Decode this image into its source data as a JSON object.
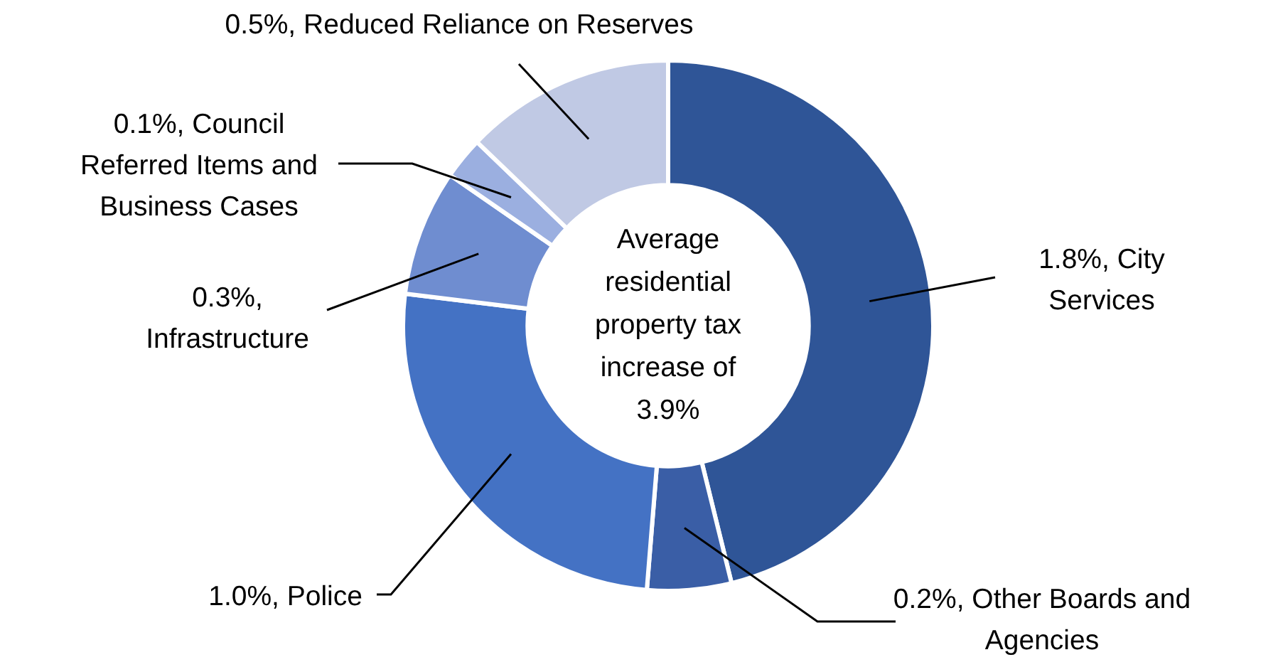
{
  "chart_data": {
    "type": "donut",
    "categories": [
      "City Services",
      "Other Boards and Agencies",
      "Police",
      "Infrastructure",
      "Council Referred Items and Business Cases",
      "Reduced Reliance on Reserves"
    ],
    "values": [
      1.8,
      0.2,
      1.0,
      0.3,
      0.1,
      0.5
    ],
    "value_labels": [
      "1.8%,",
      "0.2%,",
      "1.0%,",
      "0.3%,",
      "0.1%,",
      "0.5%,"
    ],
    "colors": [
      "#2f5597",
      "#3a5ea6",
      "#4472c4",
      "#6f8dd0",
      "#9bafe0",
      "#c0c9e4"
    ],
    "annotations": [
      "Average residential property tax increase of 3.9%"
    ],
    "legend": false
  }
}
